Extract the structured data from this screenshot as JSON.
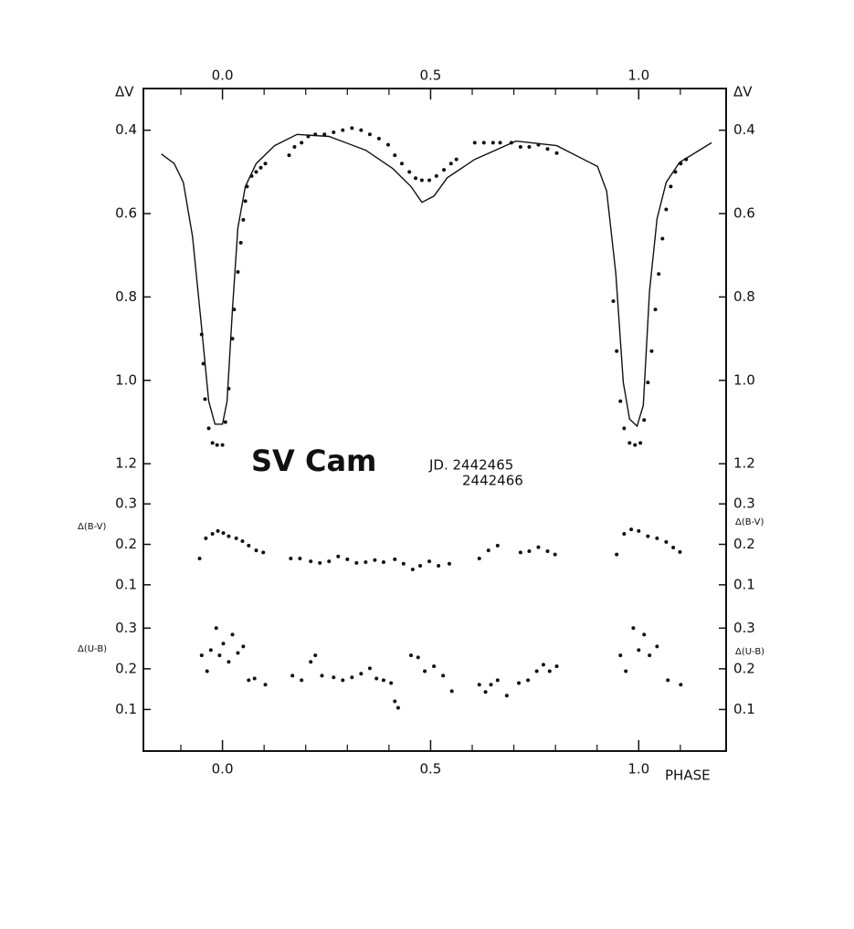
{
  "chart_data": {
    "type": "scatter",
    "title": "SV Cam",
    "annotation": [
      "JD. 2442465",
      "2442466"
    ],
    "xlabel": "PHASE",
    "xlim": [
      -0.19,
      1.21
    ],
    "xticks": [
      {
        "value": 0,
        "label": "0.0"
      },
      0.5,
      {
        "value": 1,
        "label": "1.0"
      }
    ],
    "xticks_minor": [
      -0.1,
      0.1,
      0.2,
      0.3,
      0.4,
      0.6,
      0.7,
      0.8,
      0.9,
      1.1
    ],
    "panels": [
      {
        "ylabel": "ΔV",
        "ylim": [
          1.25,
          0.3
        ],
        "yticks": [
          0.4,
          0.6,
          0.8,
          {
            "value": 1,
            "label": "1.0"
          },
          1.2
        ],
        "series": [
          {
            "type": "scatter",
            "color": "#111",
            "x": [
              -0.05,
              -0.046,
              -0.042,
              -0.033,
              -0.024,
              -0.013,
              0,
              0.007,
              0.015,
              0.024,
              0.028,
              0.037,
              0.044,
              0.05,
              0.055,
              0.059,
              0.07,
              0.081,
              0.092,
              0.103,
              0.16,
              0.173,
              0.19,
              0.206,
              0.223,
              0.245,
              0.267,
              0.289,
              0.311,
              0.333,
              0.354,
              0.376,
              0.398,
              0.414,
              0.431,
              0.449,
              0.464,
              0.479,
              0.497,
              0.514,
              0.532,
              0.549,
              0.562,
              0.606,
              0.628,
              0.65,
              0.667,
              0.694,
              0.716,
              0.737,
              0.759,
              0.781,
              0.803,
              0.939,
              0.947,
              0.956,
              0.965,
              0.978,
              0.991,
              1.004,
              1.013,
              1.022,
              1.031,
              1.04,
              1.048,
              1.057,
              1.066,
              1.077,
              1.088,
              1.101,
              1.114
            ],
            "values": [
              0.89,
              0.96,
              1.045,
              1.115,
              1.15,
              1.155,
              1.155,
              1.1,
              1.02,
              0.9,
              0.83,
              0.74,
              0.67,
              0.615,
              0.57,
              0.535,
              0.51,
              0.5,
              0.49,
              0.48,
              0.46,
              0.44,
              0.43,
              0.415,
              0.41,
              0.41,
              0.405,
              0.4,
              0.395,
              0.4,
              0.41,
              0.42,
              0.435,
              0.46,
              0.48,
              0.5,
              0.515,
              0.52,
              0.52,
              0.51,
              0.495,
              0.48,
              0.47,
              0.43,
              0.43,
              0.43,
              0.43,
              0.43,
              0.44,
              0.44,
              0.435,
              0.445,
              0.455,
              0.81,
              0.93,
              1.05,
              1.115,
              1.15,
              1.155,
              1.15,
              1.095,
              1.005,
              0.93,
              0.83,
              0.745,
              0.66,
              0.59,
              0.535,
              0.5,
              0.48,
              0.47
            ]
          },
          {
            "type": "line",
            "color": "#111",
            "x": [
              -0.147,
              -0.116,
              -0.094,
              -0.072,
              -0.05,
              -0.033,
              -0.018,
              0,
              0.011,
              0.024,
              0.037,
              0.055,
              0.081,
              0.125,
              0.179,
              0.256,
              0.344,
              0.409,
              0.453,
              0.479,
              0.508,
              0.54,
              0.606,
              0.705,
              0.803,
              0.901,
              0.923,
              0.945,
              0.963,
              0.978,
              0.996,
              1.011,
              1.026,
              1.044,
              1.066,
              1.098,
              1.175
            ],
            "values": [
              0.457,
              0.48,
              0.525,
              0.655,
              0.875,
              1.05,
              1.105,
              1.105,
              1.05,
              0.83,
              0.635,
              0.535,
              0.48,
              0.437,
              0.41,
              0.415,
              0.448,
              0.492,
              0.535,
              0.573,
              0.558,
              0.514,
              0.47,
              0.426,
              0.437,
              0.487,
              0.546,
              0.743,
              1.005,
              1.093,
              1.11,
              1.06,
              0.787,
              0.612,
              0.525,
              0.477,
              0.43
            ]
          }
        ]
      },
      {
        "ylabel": "Δ(B-V)",
        "ylim": [
          0.05,
          0.35
        ],
        "yticks": [
          0.3,
          0.2,
          0.1
        ],
        "series": [
          {
            "type": "scatter",
            "color": "#111",
            "x": [
              -0.055,
              -0.04,
              -0.024,
              -0.011,
              0.002,
              0.015,
              0.033,
              0.048,
              0.063,
              0.081,
              0.098,
              0.164,
              0.186,
              0.212,
              0.234,
              0.256,
              0.278,
              0.3,
              0.322,
              0.344,
              0.366,
              0.387,
              0.414,
              0.435,
              0.457,
              0.475,
              0.497,
              0.519,
              0.545,
              0.617,
              0.639,
              0.661,
              0.716,
              0.737,
              0.759,
              0.781,
              0.799,
              0.947,
              0.965,
              0.982,
              1.0,
              1.022,
              1.044,
              1.066,
              1.083,
              1.099
            ],
            "values": [
              0.165,
              0.215,
              0.226,
              0.233,
              0.228,
              0.22,
              0.215,
              0.208,
              0.197,
              0.185,
              0.18,
              0.165,
              0.165,
              0.158,
              0.154,
              0.158,
              0.17,
              0.163,
              0.154,
              0.156,
              0.161,
              0.156,
              0.163,
              0.152,
              0.138,
              0.147,
              0.158,
              0.147,
              0.152,
              0.165,
              0.185,
              0.197,
              0.18,
              0.183,
              0.193,
              0.183,
              0.175,
              0.175,
              0.226,
              0.237,
              0.233,
              0.22,
              0.215,
              0.206,
              0.192,
              0.181
            ]
          }
        ]
      },
      {
        "ylabel": "Δ(U-B)",
        "ylim": [
          0,
          0.35
        ],
        "yticks": [
          0.3,
          0.2,
          0.1
        ],
        "series": [
          {
            "type": "scatter",
            "color": "#111",
            "x": [
              -0.05,
              -0.037,
              -0.028,
              -0.015,
              -0.007,
              0.002,
              0.015,
              0.024,
              0.037,
              0.05,
              0.063,
              0.077,
              0.103,
              0.168,
              0.19,
              0.212,
              0.223,
              0.239,
              0.267,
              0.289,
              0.311,
              0.333,
              0.354,
              0.37,
              0.387,
              0.405,
              0.414,
              0.422,
              0.453,
              0.47,
              0.486,
              0.508,
              0.53,
              0.551,
              0.617,
              0.632,
              0.645,
              0.661,
              0.683,
              0.712,
              0.734,
              0.755,
              0.771,
              0.786,
              0.803,
              0.956,
              0.969,
              0.987,
              1.0,
              1.013,
              1.026,
              1.044,
              1.07,
              1.101
            ],
            "values": [
              0.233,
              0.194,
              0.246,
              0.3,
              0.233,
              0.262,
              0.217,
              0.284,
              0.239,
              0.255,
              0.172,
              0.176,
              0.161,
              0.183,
              0.172,
              0.217,
              0.233,
              0.183,
              0.179,
              0.172,
              0.179,
              0.188,
              0.201,
              0.176,
              0.172,
              0.165,
              0.12,
              0.104,
              0.233,
              0.228,
              0.194,
              0.206,
              0.183,
              0.145,
              0.161,
              0.143,
              0.161,
              0.172,
              0.134,
              0.165,
              0.172,
              0.194,
              0.21,
              0.194,
              0.206,
              0.233,
              0.194,
              0.3,
              0.246,
              0.284,
              0.233,
              0.255,
              0.172,
              0.161
            ]
          }
        ]
      }
    ]
  }
}
